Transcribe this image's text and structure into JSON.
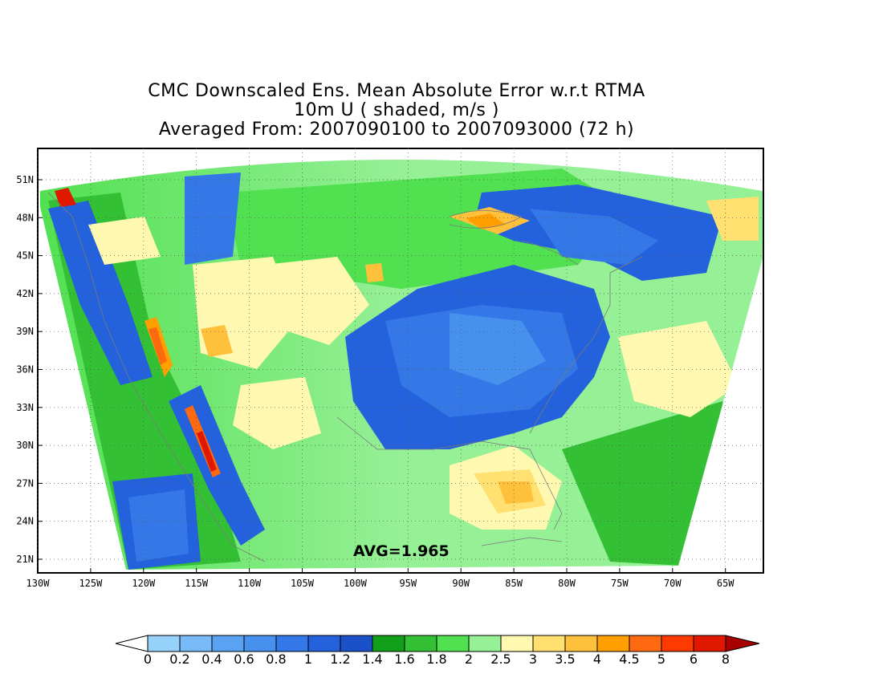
{
  "title": {
    "line1": "CMC Downscaled Ens. Mean Absolute Error w.r.t RTMA",
    "line2": "10m U ( shaded, m/s )",
    "line3": "Averaged From: 2007090100 to 2007093000 (72 h)"
  },
  "map": {
    "lat_labels": [
      "51N",
      "48N",
      "45N",
      "42N",
      "39N",
      "36N",
      "33N",
      "30N",
      "27N",
      "24N",
      "21N"
    ],
    "lon_labels": [
      "130W",
      "125W",
      "120W",
      "115W",
      "110W",
      "105W",
      "100W",
      "95W",
      "90W",
      "85W",
      "80W",
      "75W",
      "70W",
      "65W"
    ],
    "avg_label": "AVG=1.965"
  },
  "colorbar": {
    "labels": [
      "0",
      "0.2",
      "0.4",
      "0.6",
      "0.8",
      "1",
      "1.2",
      "1.4",
      "1.6",
      "1.8",
      "2",
      "2.5",
      "3",
      "3.5",
      "4",
      "4.5",
      "5",
      "6",
      "8"
    ],
    "colors": [
      "#97d2fa",
      "#78b9f7",
      "#5aa2f2",
      "#4690ee",
      "#3478e8",
      "#2461dc",
      "#1a50c8",
      "#12a01a",
      "#34c034",
      "#50e050",
      "#96f096",
      "#fff8b0",
      "#ffe070",
      "#ffc03c",
      "#ffa000",
      "#ff6a10",
      "#ff3a00",
      "#e01800",
      "#a80000"
    ]
  }
}
